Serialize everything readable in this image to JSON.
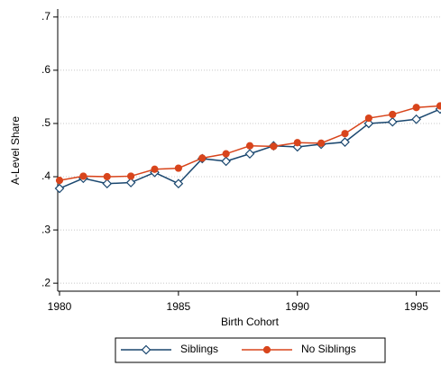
{
  "chart_data": {
    "type": "line",
    "x_label": "Birth Cohort",
    "y_label": "A-Level Share",
    "x": [
      1980,
      1981,
      1982,
      1983,
      1984,
      1985,
      1986,
      1987,
      1988,
      1989,
      1990,
      1991,
      1992,
      1993,
      1994,
      1995,
      1996
    ],
    "series": [
      {
        "name": "Siblings",
        "color": "#1a476f",
        "marker": "diamond",
        "values": [
          0.378,
          0.397,
          0.387,
          0.389,
          0.408,
          0.387,
          0.434,
          0.429,
          0.443,
          0.458,
          0.456,
          0.461,
          0.465,
          0.5,
          0.503,
          0.508,
          0.527
        ]
      },
      {
        "name": "No Siblings",
        "color": "#d8451c",
        "marker": "circle",
        "values": [
          0.393,
          0.401,
          0.4,
          0.401,
          0.414,
          0.416,
          0.435,
          0.443,
          0.458,
          0.457,
          0.464,
          0.463,
          0.481,
          0.51,
          0.517,
          0.53,
          0.533
        ]
      }
    ],
    "xlim": [
      1980,
      1996
    ],
    "xticks": [
      1980,
      1985,
      1990,
      1995
    ],
    "ylim": [
      0.185,
      0.715
    ],
    "yticks": [
      {
        "value": 0.2,
        "label": ".2"
      },
      {
        "value": 0.3,
        "label": ".3"
      },
      {
        "value": 0.4,
        "label": ".4"
      },
      {
        "value": 0.5,
        "label": ".5"
      },
      {
        "value": 0.6,
        "label": ".6"
      },
      {
        "value": 0.7,
        "label": ".7"
      }
    ],
    "grid": true,
    "legend": "bottom"
  }
}
